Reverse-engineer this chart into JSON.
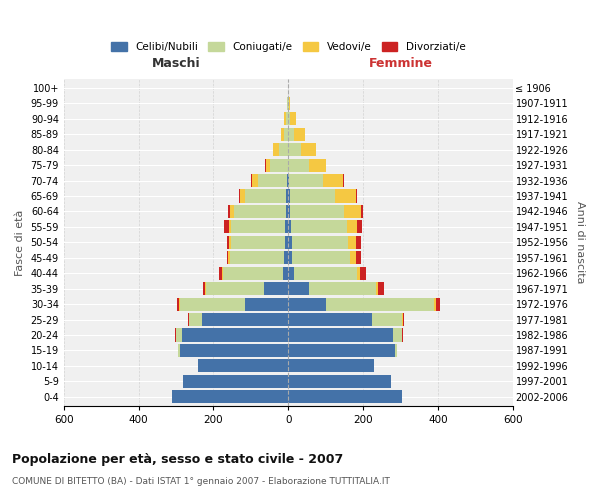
{
  "age_groups": [
    "0-4",
    "5-9",
    "10-14",
    "15-19",
    "20-24",
    "25-29",
    "30-34",
    "35-39",
    "40-44",
    "45-49",
    "50-54",
    "55-59",
    "60-64",
    "65-69",
    "70-74",
    "75-79",
    "80-84",
    "85-89",
    "90-94",
    "95-99",
    "100+"
  ],
  "birth_years": [
    "2002-2006",
    "1997-2001",
    "1992-1996",
    "1987-1991",
    "1982-1986",
    "1977-1981",
    "1972-1976",
    "1967-1971",
    "1962-1966",
    "1957-1961",
    "1952-1956",
    "1947-1951",
    "1942-1946",
    "1937-1941",
    "1932-1936",
    "1927-1931",
    "1922-1926",
    "1917-1921",
    "1912-1916",
    "1907-1911",
    "≤ 1906"
  ],
  "male": {
    "celibi": [
      310,
      280,
      240,
      290,
      285,
      230,
      115,
      65,
      15,
      10,
      8,
      8,
      5,
      5,
      2,
      0,
      0,
      0,
      0,
      0,
      0
    ],
    "coniugati": [
      0,
      0,
      0,
      5,
      15,
      35,
      175,
      155,
      160,
      145,
      145,
      145,
      140,
      110,
      80,
      50,
      25,
      10,
      5,
      2,
      0
    ],
    "vedovi": [
      0,
      0,
      0,
      0,
      0,
      0,
      2,
      2,
      2,
      5,
      5,
      5,
      10,
      15,
      15,
      10,
      15,
      10,
      5,
      1,
      0
    ],
    "divorziati": [
      0,
      0,
      0,
      0,
      2,
      2,
      5,
      5,
      8,
      5,
      5,
      15,
      5,
      2,
      2,
      2,
      0,
      0,
      0,
      0,
      0
    ]
  },
  "female": {
    "nubili": [
      305,
      275,
      230,
      285,
      280,
      225,
      100,
      55,
      15,
      10,
      10,
      8,
      5,
      5,
      2,
      0,
      0,
      0,
      0,
      0,
      0
    ],
    "coniugate": [
      0,
      0,
      0,
      5,
      25,
      80,
      290,
      180,
      170,
      155,
      150,
      150,
      145,
      120,
      90,
      55,
      35,
      15,
      5,
      2,
      0
    ],
    "vedove": [
      0,
      0,
      0,
      0,
      0,
      2,
      5,
      5,
      8,
      15,
      20,
      25,
      45,
      55,
      55,
      45,
      40,
      30,
      15,
      2,
      0
    ],
    "divorziate": [
      0,
      0,
      0,
      0,
      2,
      2,
      10,
      15,
      15,
      15,
      15,
      15,
      5,
      5,
      2,
      2,
      0,
      0,
      0,
      0,
      0
    ]
  },
  "colors": {
    "celibi": "#4472a8",
    "coniugati": "#c5d89a",
    "vedovi": "#f5c842",
    "divorziati": "#cc2222"
  },
  "xlim": 600,
  "title": "Popolazione per età, sesso e stato civile - 2007",
  "subtitle": "COMUNE DI BITETTO (BA) - Dati ISTAT 1° gennaio 2007 - Elaborazione TUTTITALIA.IT",
  "xlabel_left": "Maschi",
  "xlabel_right": "Femmine",
  "ylabel_left": "Fasce di età",
  "ylabel_right": "Anni di nascita",
  "legend_labels": [
    "Celibi/Nubili",
    "Coniugati/e",
    "Vedovi/e",
    "Divorziati/e"
  ],
  "background_color": "#ffffff",
  "grid_color": "#cccccc"
}
